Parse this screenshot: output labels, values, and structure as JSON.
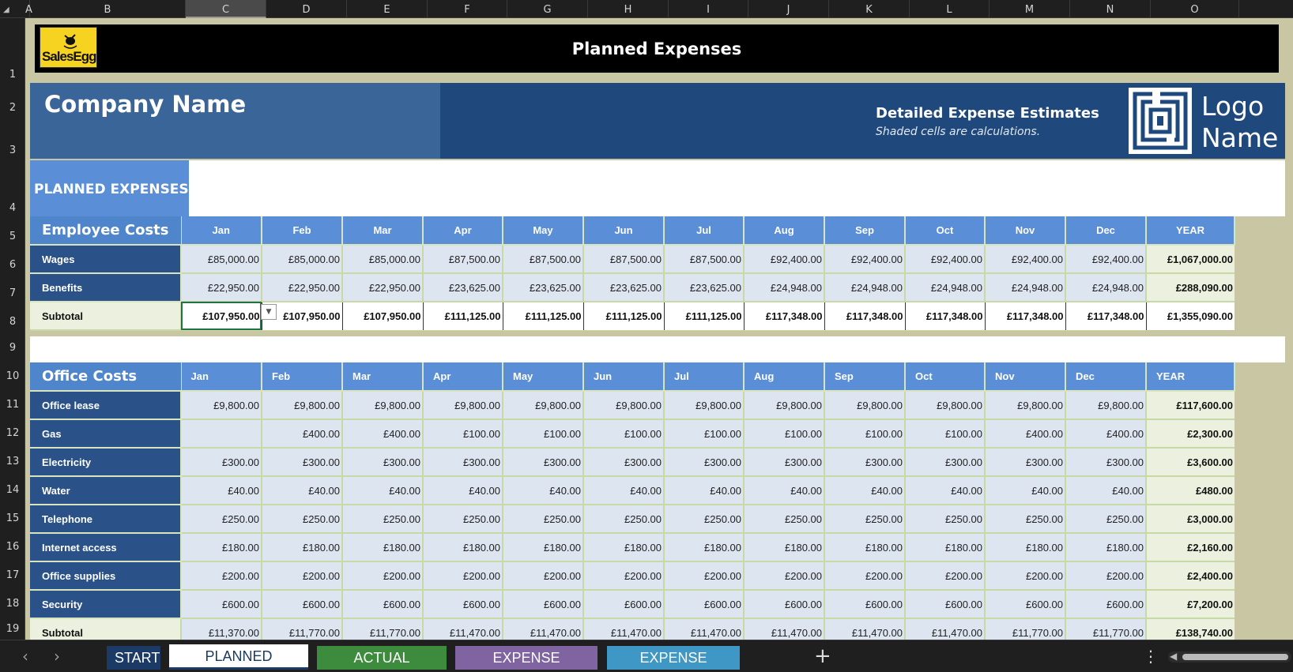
{
  "colors": {
    "banner_bg": "#000000",
    "company_bg": "#3a6598",
    "header_dark": "#1f487c",
    "month_header": "#5a8ed6",
    "label_dark": "#2a5288",
    "value_cell": "#dde5f0",
    "year_cell": "#ebf1de",
    "sheet_frame": "#c9c6a4",
    "logo_yellow": "#f6d221"
  },
  "columns": [
    "A",
    "B",
    "C",
    "D",
    "E",
    "F",
    "G",
    "H",
    "I",
    "J",
    "K",
    "L",
    "M",
    "N",
    "O"
  ],
  "rows": [
    "1",
    "2",
    "3",
    "4",
    "5",
    "6",
    "7",
    "8",
    "9",
    "10",
    "11",
    "12",
    "13",
    "14",
    "15",
    "16",
    "17",
    "18",
    "19"
  ],
  "banner": {
    "logo_text": "SalesEgg",
    "title": "Planned Expenses"
  },
  "header": {
    "company": "Company Name",
    "detail_title": "Detailed Expense Estimates",
    "detail_sub": "Shaded cells are calculations.",
    "logo_line1": "Logo",
    "logo_line2": "Name"
  },
  "section_label": "PLANNED EXPENSES",
  "months": [
    "Jan",
    "Feb",
    "Mar",
    "Apr",
    "May",
    "Jun",
    "Jul",
    "Aug",
    "Sep",
    "Oct",
    "Nov",
    "Dec",
    "YEAR"
  ],
  "employee": {
    "title": "Employee Costs",
    "rows": [
      {
        "label": "Wages",
        "values": [
          "£85,000.00",
          "£85,000.00",
          "£85,000.00",
          "£87,500.00",
          "£87,500.00",
          "£87,500.00",
          "£87,500.00",
          "£92,400.00",
          "£92,400.00",
          "£92,400.00",
          "£92,400.00",
          "£92,400.00"
        ],
        "year": "£1,067,000.00"
      },
      {
        "label": "Benefits",
        "values": [
          "£22,950.00",
          "£22,950.00",
          "£22,950.00",
          "£23,625.00",
          "£23,625.00",
          "£23,625.00",
          "£23,625.00",
          "£24,948.00",
          "£24,948.00",
          "£24,948.00",
          "£24,948.00",
          "£24,948.00"
        ],
        "year": "£288,090.00"
      }
    ],
    "subtotal": {
      "label": "Subtotal",
      "values": [
        "£107,950.00",
        "£107,950.00",
        "£107,950.00",
        "£111,125.00",
        "£111,125.00",
        "£111,125.00",
        "£111,125.00",
        "£117,348.00",
        "£117,348.00",
        "£117,348.00",
        "£117,348.00",
        "£117,348.00"
      ],
      "year": "£1,355,090.00"
    }
  },
  "office": {
    "title": "Office Costs",
    "rows": [
      {
        "label": "Office lease",
        "values": [
          "£9,800.00",
          "£9,800.00",
          "£9,800.00",
          "£9,800.00",
          "£9,800.00",
          "£9,800.00",
          "£9,800.00",
          "£9,800.00",
          "£9,800.00",
          "£9,800.00",
          "£9,800.00",
          "£9,800.00"
        ],
        "year": "£117,600.00"
      },
      {
        "label": "Gas",
        "values": [
          "",
          "£400.00",
          "£400.00",
          "£100.00",
          "£100.00",
          "£100.00",
          "£100.00",
          "£100.00",
          "£100.00",
          "£100.00",
          "£400.00",
          "£400.00"
        ],
        "year": "£2,300.00"
      },
      {
        "label": "Electricity",
        "values": [
          "£300.00",
          "£300.00",
          "£300.00",
          "£300.00",
          "£300.00",
          "£300.00",
          "£300.00",
          "£300.00",
          "£300.00",
          "£300.00",
          "£300.00",
          "£300.00"
        ],
        "year": "£3,600.00"
      },
      {
        "label": "Water",
        "values": [
          "£40.00",
          "£40.00",
          "£40.00",
          "£40.00",
          "£40.00",
          "£40.00",
          "£40.00",
          "£40.00",
          "£40.00",
          "£40.00",
          "£40.00",
          "£40.00"
        ],
        "year": "£480.00"
      },
      {
        "label": "Telephone",
        "values": [
          "£250.00",
          "£250.00",
          "£250.00",
          "£250.00",
          "£250.00",
          "£250.00",
          "£250.00",
          "£250.00",
          "£250.00",
          "£250.00",
          "£250.00",
          "£250.00"
        ],
        "year": "£3,000.00"
      },
      {
        "label": "Internet access",
        "values": [
          "£180.00",
          "£180.00",
          "£180.00",
          "£180.00",
          "£180.00",
          "£180.00",
          "£180.00",
          "£180.00",
          "£180.00",
          "£180.00",
          "£180.00",
          "£180.00"
        ],
        "year": "£2,160.00"
      },
      {
        "label": "Office supplies",
        "values": [
          "£200.00",
          "£200.00",
          "£200.00",
          "£200.00",
          "£200.00",
          "£200.00",
          "£200.00",
          "£200.00",
          "£200.00",
          "£200.00",
          "£200.00",
          "£200.00"
        ],
        "year": "£2,400.00"
      },
      {
        "label": "Security",
        "values": [
          "£600.00",
          "£600.00",
          "£600.00",
          "£600.00",
          "£600.00",
          "£600.00",
          "£600.00",
          "£600.00",
          "£600.00",
          "£600.00",
          "£600.00",
          "£600.00"
        ],
        "year": "£7,200.00"
      }
    ],
    "subtotal": {
      "label": "Subtotal",
      "values": [
        "£11,370.00",
        "£11,770.00",
        "£11,770.00",
        "£11,470.00",
        "£11,470.00",
        "£11,470.00",
        "£11,470.00",
        "£11,470.00",
        "£11,470.00",
        "£11,470.00",
        "£11,770.00",
        "£11,770.00"
      ],
      "year": "£138,740.00"
    }
  },
  "tabs": [
    {
      "label": "START",
      "color": "#1b3b66"
    },
    {
      "label": "PLANNED EXPENSES",
      "color": "#ffffff",
      "active": true
    },
    {
      "label": "ACTUAL EXPENSES",
      "color": "#3d8c3d"
    },
    {
      "label": "EXPENSE VARIANCES",
      "color": "#8064a2"
    },
    {
      "label": "EXPENSE ANALYSIS",
      "color": "#3f97c6"
    }
  ],
  "icons": {
    "prev": "chevron-left-icon",
    "next": "chevron-right-icon",
    "add": "plus-icon",
    "menu": "vertical-dots-icon"
  }
}
